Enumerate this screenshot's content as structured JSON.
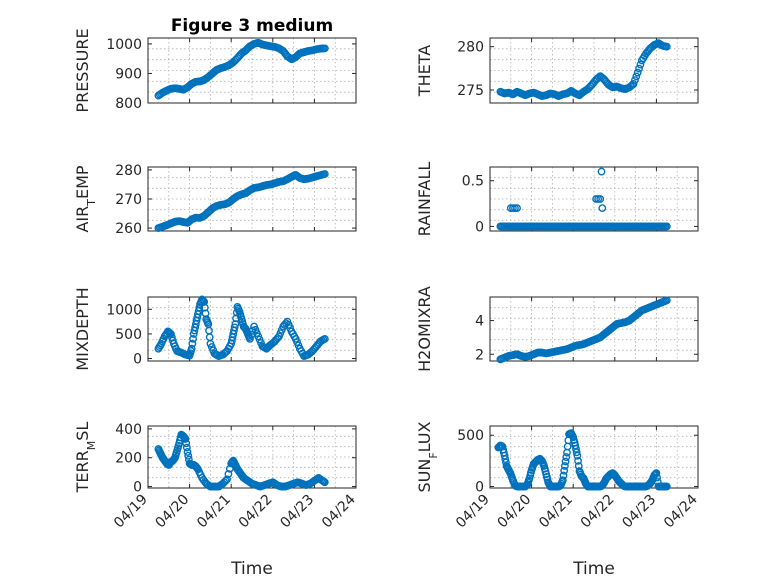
{
  "figure_title": "Figure 3 medium",
  "xlabel": "Time",
  "colors": {
    "marker": "#0072BD",
    "axis": "#262626",
    "grid": "#b0b0b0"
  },
  "x_ticks": [
    "04/19",
    "04/20",
    "04/21",
    "04/22",
    "04/23",
    "04/24"
  ],
  "chart_data": [
    {
      "type": "scatter",
      "ylabel": "PRESSURE",
      "ylim": [
        800,
        1020
      ],
      "yticks": [
        800,
        900,
        1000
      ],
      "xlim": [
        "04/19",
        "04/24"
      ],
      "grid": true,
      "x_days": [
        0.25,
        0.35,
        0.45,
        0.55,
        0.65,
        0.75,
        0.85,
        0.95,
        1.05,
        1.15,
        1.25,
        1.35,
        1.45,
        1.55,
        1.65,
        1.75,
        1.85,
        1.95,
        2.05,
        2.15,
        2.25,
        2.35,
        2.45,
        2.55,
        2.65,
        2.75,
        2.85,
        2.95,
        3.05,
        3.15,
        3.25,
        3.35,
        3.45,
        3.55,
        3.65,
        3.75,
        3.85,
        3.95,
        4.05,
        4.15,
        4.25
      ],
      "y": [
        825,
        835,
        842,
        848,
        850,
        848,
        845,
        853,
        865,
        872,
        873,
        878,
        888,
        900,
        912,
        918,
        922,
        928,
        938,
        952,
        968,
        978,
        992,
        1000,
        1004,
        998,
        995,
        992,
        990,
        985,
        976,
        958,
        948,
        955,
        968,
        972,
        976,
        978,
        982,
        984,
        985
      ]
    },
    {
      "type": "scatter",
      "ylabel": "THETA",
      "ylim": [
        273.5,
        281
      ],
      "yticks": [
        275,
        280
      ],
      "xlim": [
        "04/19",
        "04/24"
      ],
      "grid": true,
      "x_days": [
        0.25,
        0.35,
        0.45,
        0.55,
        0.65,
        0.75,
        0.85,
        0.95,
        1.05,
        1.15,
        1.25,
        1.35,
        1.45,
        1.55,
        1.65,
        1.75,
        1.85,
        1.95,
        2.05,
        2.15,
        2.25,
        2.35,
        2.45,
        2.55,
        2.65,
        2.75,
        2.85,
        2.95,
        3.05,
        3.15,
        3.25,
        3.35,
        3.45,
        3.55,
        3.65,
        3.75,
        3.85,
        3.95,
        4.05,
        4.15,
        4.25
      ],
      "y": [
        274.8,
        274.6,
        274.7,
        274.5,
        274.8,
        274.6,
        274.4,
        274.6,
        274.7,
        274.5,
        274.3,
        274.4,
        274.6,
        274.5,
        274.3,
        274.5,
        274.6,
        274.9,
        274.6,
        274.4,
        274.8,
        275.1,
        275.6,
        276.2,
        276.6,
        276.2,
        275.6,
        275.3,
        275.4,
        275.2,
        275.1,
        275.3,
        275.7,
        277.0,
        278.4,
        279.2,
        279.8,
        280.2,
        280.4,
        280.1,
        280.0
      ]
    },
    {
      "type": "scatter",
      "ylabel": "AIR_TEMP",
      "ylim": [
        259,
        281
      ],
      "yticks": [
        260,
        270,
        280
      ],
      "xlim": [
        "04/19",
        "04/24"
      ],
      "grid": true,
      "x_days": [
        0.25,
        0.35,
        0.45,
        0.55,
        0.65,
        0.75,
        0.85,
        0.95,
        1.05,
        1.15,
        1.25,
        1.35,
        1.45,
        1.55,
        1.65,
        1.75,
        1.85,
        1.95,
        2.05,
        2.15,
        2.25,
        2.35,
        2.45,
        2.55,
        2.65,
        2.75,
        2.85,
        2.95,
        3.05,
        3.15,
        3.25,
        3.35,
        3.45,
        3.55,
        3.65,
        3.75,
        3.85,
        3.95,
        4.05,
        4.15,
        4.25
      ],
      "y": [
        260.0,
        260.5,
        261.0,
        261.6,
        262.2,
        262.4,
        262.1,
        261.8,
        263.0,
        263.6,
        263.5,
        264.2,
        265.5,
        266.8,
        267.6,
        268.0,
        268.2,
        268.8,
        270.0,
        271.0,
        271.6,
        272.0,
        273.0,
        273.8,
        274.0,
        274.4,
        274.8,
        275.0,
        275.4,
        275.9,
        276.1,
        276.8,
        277.6,
        278.3,
        277.2,
        276.8,
        277.0,
        277.4,
        277.8,
        278.2,
        278.6
      ]
    },
    {
      "type": "scatter",
      "ylabel": "RAINFALL",
      "ylim": [
        -0.05,
        0.65
      ],
      "yticks": [
        0,
        0.5
      ],
      "xlim": [
        "04/19",
        "04/24"
      ],
      "grid": true,
      "x_days": [
        0.25,
        0.35,
        0.45,
        0.55,
        0.65,
        0.75,
        0.85,
        0.95,
        1.05,
        1.15,
        1.25,
        1.35,
        1.45,
        1.55,
        1.65,
        1.75,
        1.85,
        1.95,
        2.05,
        2.15,
        2.25,
        2.35,
        2.45,
        2.55,
        2.65,
        2.75,
        2.85,
        2.95,
        3.05,
        3.15,
        3.25,
        3.35,
        3.45,
        3.55,
        3.65,
        3.75,
        3.85,
        3.95,
        4.05,
        4.15,
        4.25,
        0.5,
        0.55,
        0.6,
        0.65,
        2.55,
        2.6,
        2.65,
        2.68,
        2.7
      ],
      "y": [
        0,
        0,
        0,
        0,
        0,
        0,
        0,
        0,
        0,
        0,
        0,
        0,
        0,
        0,
        0,
        0,
        0,
        0,
        0,
        0,
        0,
        0,
        0,
        0,
        0,
        0,
        0,
        0,
        0,
        0,
        0,
        0,
        0,
        0,
        0,
        0,
        0,
        0,
        0,
        0,
        0,
        0.2,
        0.2,
        0.2,
        0.2,
        0.3,
        0.3,
        0.3,
        0.6,
        0.2
      ]
    },
    {
      "type": "scatter",
      "ylabel": "MIXDEPTH",
      "ylim": [
        -50,
        1250
      ],
      "yticks": [
        0,
        500,
        1000
      ],
      "xlim": [
        "04/19",
        "04/24"
      ],
      "grid": true,
      "x_days": [
        0.25,
        0.32,
        0.4,
        0.48,
        0.55,
        0.62,
        0.7,
        0.8,
        0.9,
        1.0,
        1.05,
        1.1,
        1.15,
        1.2,
        1.25,
        1.3,
        1.35,
        1.4,
        1.45,
        1.5,
        1.6,
        1.7,
        1.8,
        1.9,
        2.0,
        2.05,
        2.1,
        2.15,
        2.2,
        2.25,
        2.3,
        2.35,
        2.4,
        2.45,
        2.55,
        2.65,
        2.75,
        2.85,
        2.95,
        3.05,
        3.15,
        3.25,
        3.35,
        3.45,
        3.55,
        3.65,
        3.75,
        3.85,
        3.95,
        4.05,
        4.15,
        4.25
      ],
      "y": [
        200,
        300,
        450,
        550,
        500,
        300,
        150,
        120,
        80,
        60,
        200,
        500,
        700,
        900,
        1100,
        1200,
        1150,
        800,
        700,
        300,
        100,
        50,
        80,
        150,
        300,
        500,
        700,
        1050,
        950,
        800,
        650,
        600,
        500,
        400,
        650,
        450,
        250,
        200,
        280,
        350,
        450,
        650,
        750,
        550,
        400,
        200,
        50,
        80,
        150,
        250,
        350,
        400
      ]
    },
    {
      "type": "scatter",
      "ylabel": "H2OMIXRA",
      "ylim": [
        1.6,
        5.4
      ],
      "yticks": [
        2,
        4
      ],
      "xlim": [
        "04/19",
        "04/24"
      ],
      "grid": true,
      "x_days": [
        0.25,
        0.35,
        0.45,
        0.55,
        0.65,
        0.75,
        0.85,
        0.95,
        1.05,
        1.15,
        1.25,
        1.35,
        1.45,
        1.55,
        1.65,
        1.75,
        1.85,
        1.95,
        2.05,
        2.15,
        2.25,
        2.35,
        2.45,
        2.55,
        2.65,
        2.75,
        2.85,
        2.95,
        3.05,
        3.15,
        3.25,
        3.35,
        3.45,
        3.55,
        3.65,
        3.75,
        3.85,
        3.95,
        4.05,
        4.15,
        4.25
      ],
      "y": [
        1.7,
        1.8,
        1.9,
        1.95,
        2.0,
        1.9,
        1.85,
        1.9,
        2.0,
        2.1,
        2.1,
        2.05,
        2.1,
        2.15,
        2.2,
        2.25,
        2.3,
        2.4,
        2.5,
        2.55,
        2.6,
        2.7,
        2.8,
        2.9,
        3.0,
        3.2,
        3.4,
        3.6,
        3.8,
        3.85,
        3.9,
        4.0,
        4.2,
        4.4,
        4.6,
        4.7,
        4.8,
        4.9,
        5.0,
        5.1,
        5.2
      ]
    },
    {
      "type": "scatter",
      "ylabel": "TERR_MSL",
      "ylim": [
        -10,
        420
      ],
      "yticks": [
        0,
        200,
        400
      ],
      "xlim": [
        "04/19",
        "04/24"
      ],
      "grid": true,
      "x_days": [
        0.25,
        0.3,
        0.35,
        0.4,
        0.45,
        0.5,
        0.55,
        0.6,
        0.65,
        0.7,
        0.75,
        0.8,
        0.85,
        0.9,
        0.95,
        1.0,
        1.05,
        1.1,
        1.15,
        1.2,
        1.3,
        1.4,
        1.5,
        1.6,
        1.7,
        1.8,
        1.9,
        2.0,
        2.05,
        2.1,
        2.15,
        2.2,
        2.25,
        2.3,
        2.4,
        2.5,
        2.6,
        2.7,
        2.8,
        2.9,
        3.0,
        3.1,
        3.2,
        3.3,
        3.4,
        3.5,
        3.6,
        3.7,
        3.8,
        3.9,
        4.0,
        4.1,
        4.2,
        4.25
      ],
      "y": [
        260,
        230,
        200,
        180,
        160,
        150,
        170,
        180,
        200,
        250,
        300,
        360,
        350,
        330,
        240,
        160,
        150,
        150,
        140,
        120,
        60,
        20,
        0,
        0,
        0,
        20,
        50,
        160,
        180,
        150,
        120,
        100,
        80,
        60,
        40,
        20,
        10,
        0,
        10,
        20,
        30,
        10,
        0,
        0,
        10,
        20,
        30,
        20,
        10,
        20,
        40,
        60,
        40,
        30
      ]
    },
    {
      "type": "scatter",
      "ylabel": "SUN_FLUX",
      "ylim": [
        -15,
        590
      ],
      "yticks": [
        0,
        500
      ],
      "xlim": [
        "04/19",
        "04/24"
      ],
      "grid": true,
      "x_days": [
        0.2,
        0.25,
        0.3,
        0.35,
        0.4,
        0.45,
        0.5,
        0.55,
        0.6,
        0.65,
        0.7,
        0.75,
        0.8,
        0.85,
        0.9,
        0.95,
        1.0,
        1.05,
        1.1,
        1.15,
        1.2,
        1.25,
        1.3,
        1.35,
        1.4,
        1.45,
        1.5,
        1.55,
        1.6,
        1.65,
        1.7,
        1.75,
        1.8,
        1.85,
        1.9,
        1.95,
        2.0,
        2.05,
        2.1,
        2.15,
        2.2,
        2.25,
        2.3,
        2.35,
        2.4,
        2.45,
        2.5,
        2.55,
        2.6,
        2.65,
        2.7,
        2.75,
        2.8,
        2.85,
        2.9,
        2.95,
        3.0,
        3.05,
        3.1,
        3.15,
        3.2,
        3.25,
        3.3,
        3.35,
        3.4,
        3.45,
        3.5,
        3.55,
        3.6,
        3.65,
        3.7,
        3.75,
        3.8,
        3.85,
        3.9,
        3.95,
        4.0,
        4.05,
        4.1,
        4.15,
        4.2,
        4.25
      ],
      "y": [
        380,
        400,
        390,
        300,
        200,
        160,
        120,
        60,
        10,
        0,
        0,
        0,
        0,
        0,
        20,
        80,
        160,
        220,
        240,
        260,
        270,
        250,
        200,
        120,
        40,
        0,
        0,
        0,
        0,
        0,
        10,
        60,
        200,
        330,
        510,
        520,
        480,
        400,
        300,
        150,
        100,
        80,
        30,
        0,
        0,
        0,
        0,
        0,
        0,
        0,
        10,
        40,
        80,
        100,
        120,
        130,
        110,
        80,
        50,
        30,
        10,
        0,
        0,
        0,
        0,
        0,
        0,
        0,
        0,
        0,
        0,
        0,
        10,
        30,
        60,
        110,
        130,
        0,
        0,
        0,
        0,
        0
      ]
    }
  ]
}
